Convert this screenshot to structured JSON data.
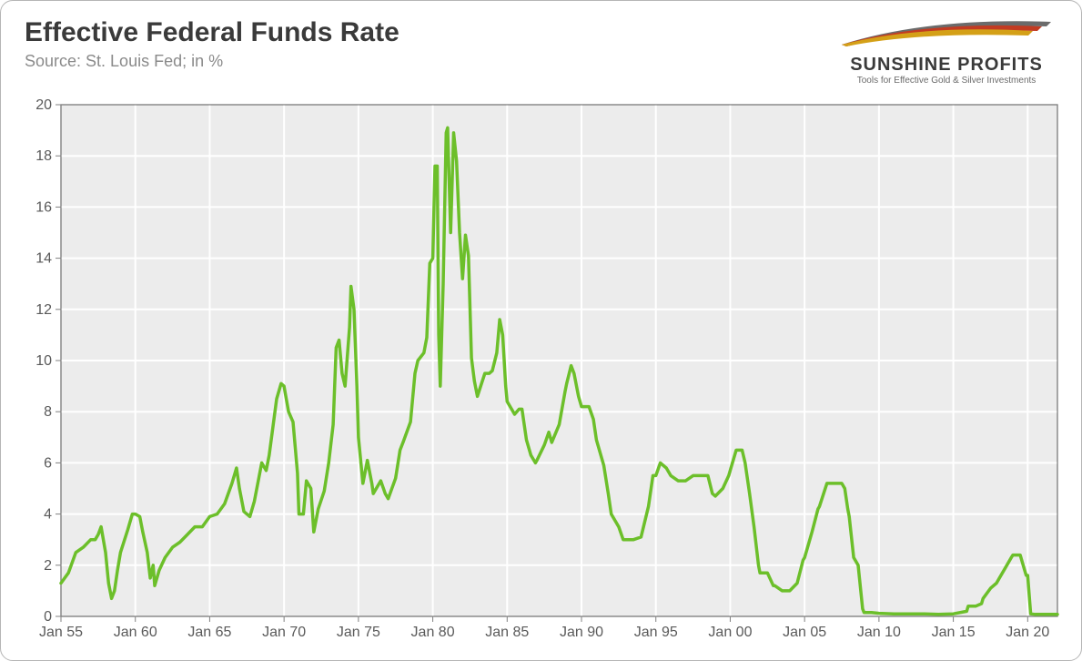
{
  "header": {
    "title": "Effective Federal Funds Rate",
    "subtitle": "Source: St. Louis Fed; in %"
  },
  "logo": {
    "title": "SUNSHINE PROFITS",
    "tagline": "Tools for Effective Gold & Silver Investments",
    "swoosh_colors": [
      "#d4a017",
      "#c23b22",
      "#6b6b6b"
    ]
  },
  "chart": {
    "type": "line",
    "background_color": "#ececec",
    "border_color": "#808080",
    "grid_color": "#ffffff",
    "line_color": "#6cbf2a",
    "line_width": 3.5,
    "ylim": [
      0,
      20
    ],
    "ytick_step": 2,
    "yticks": [
      0,
      2,
      4,
      6,
      8,
      10,
      12,
      14,
      16,
      18,
      20
    ],
    "xlim": [
      1955,
      2022
    ],
    "xtick_step": 5,
    "xticks": [
      {
        "v": 1955,
        "label": "Jan 55"
      },
      {
        "v": 1960,
        "label": "Jan 60"
      },
      {
        "v": 1965,
        "label": "Jan 65"
      },
      {
        "v": 1970,
        "label": "Jan 70"
      },
      {
        "v": 1975,
        "label": "Jan 75"
      },
      {
        "v": 1980,
        "label": "Jan 80"
      },
      {
        "v": 1985,
        "label": "Jan 85"
      },
      {
        "v": 1990,
        "label": "Jan 90"
      },
      {
        "v": 1995,
        "label": "Jan 95"
      },
      {
        "v": 2000,
        "label": "Jan 00"
      },
      {
        "v": 2005,
        "label": "Jan 05"
      },
      {
        "v": 2010,
        "label": "Jan 10"
      },
      {
        "v": 2015,
        "label": "Jan 15"
      },
      {
        "v": 2020,
        "label": "Jan 20"
      }
    ],
    "series": {
      "name": "Effective Federal Funds Rate",
      "points": [
        [
          1955.0,
          1.3
        ],
        [
          1955.5,
          1.7
        ],
        [
          1956.0,
          2.5
        ],
        [
          1956.5,
          2.7
        ],
        [
          1957.0,
          3.0
        ],
        [
          1957.3,
          3.0
        ],
        [
          1957.5,
          3.2
        ],
        [
          1957.7,
          3.5
        ],
        [
          1958.0,
          2.5
        ],
        [
          1958.2,
          1.3
        ],
        [
          1958.4,
          0.7
        ],
        [
          1958.6,
          1.0
        ],
        [
          1958.8,
          1.8
        ],
        [
          1959.0,
          2.5
        ],
        [
          1959.5,
          3.4
        ],
        [
          1959.8,
          4.0
        ],
        [
          1960.0,
          4.0
        ],
        [
          1960.3,
          3.9
        ],
        [
          1960.5,
          3.3
        ],
        [
          1960.8,
          2.5
        ],
        [
          1961.0,
          1.5
        ],
        [
          1961.2,
          2.0
        ],
        [
          1961.3,
          1.2
        ],
        [
          1961.6,
          1.8
        ],
        [
          1962.0,
          2.3
        ],
        [
          1962.5,
          2.7
        ],
        [
          1963.0,
          2.9
        ],
        [
          1963.5,
          3.2
        ],
        [
          1964.0,
          3.5
        ],
        [
          1964.5,
          3.5
        ],
        [
          1965.0,
          3.9
        ],
        [
          1965.5,
          4.0
        ],
        [
          1966.0,
          4.4
        ],
        [
          1966.5,
          5.2
        ],
        [
          1966.8,
          5.8
        ],
        [
          1967.0,
          5.0
        ],
        [
          1967.3,
          4.1
        ],
        [
          1967.7,
          3.9
        ],
        [
          1968.0,
          4.5
        ],
        [
          1968.5,
          6.0
        ],
        [
          1968.8,
          5.7
        ],
        [
          1969.0,
          6.3
        ],
        [
          1969.5,
          8.5
        ],
        [
          1969.8,
          9.1
        ],
        [
          1970.0,
          9.0
        ],
        [
          1970.3,
          8.0
        ],
        [
          1970.6,
          7.6
        ],
        [
          1970.9,
          5.6
        ],
        [
          1971.0,
          4.0
        ],
        [
          1971.3,
          4.0
        ],
        [
          1971.5,
          5.3
        ],
        [
          1971.8,
          5.0
        ],
        [
          1972.0,
          3.3
        ],
        [
          1972.3,
          4.2
        ],
        [
          1972.7,
          4.9
        ],
        [
          1973.0,
          6.0
        ],
        [
          1973.3,
          7.5
        ],
        [
          1973.5,
          10.5
        ],
        [
          1973.7,
          10.8
        ],
        [
          1973.9,
          9.5
        ],
        [
          1974.1,
          9.0
        ],
        [
          1974.4,
          11.3
        ],
        [
          1974.5,
          12.9
        ],
        [
          1974.7,
          12.0
        ],
        [
          1974.9,
          9.0
        ],
        [
          1975.0,
          7.0
        ],
        [
          1975.3,
          5.2
        ],
        [
          1975.6,
          6.1
        ],
        [
          1975.9,
          5.2
        ],
        [
          1976.0,
          4.8
        ],
        [
          1976.5,
          5.3
        ],
        [
          1976.8,
          4.8
        ],
        [
          1977.0,
          4.6
        ],
        [
          1977.5,
          5.4
        ],
        [
          1977.8,
          6.5
        ],
        [
          1978.0,
          6.8
        ],
        [
          1978.5,
          7.6
        ],
        [
          1978.8,
          9.5
        ],
        [
          1979.0,
          10.0
        ],
        [
          1979.4,
          10.3
        ],
        [
          1979.6,
          10.9
        ],
        [
          1979.8,
          13.8
        ],
        [
          1980.0,
          14.0
        ],
        [
          1980.15,
          17.6
        ],
        [
          1980.3,
          17.6
        ],
        [
          1980.4,
          11.0
        ],
        [
          1980.5,
          9.0
        ],
        [
          1980.7,
          13.0
        ],
        [
          1980.9,
          18.9
        ],
        [
          1981.0,
          19.1
        ],
        [
          1981.2,
          15.0
        ],
        [
          1981.4,
          18.9
        ],
        [
          1981.6,
          17.8
        ],
        [
          1981.8,
          15.0
        ],
        [
          1982.0,
          13.2
        ],
        [
          1982.2,
          14.9
        ],
        [
          1982.4,
          14.1
        ],
        [
          1982.6,
          10.1
        ],
        [
          1982.8,
          9.2
        ],
        [
          1983.0,
          8.6
        ],
        [
          1983.5,
          9.5
        ],
        [
          1983.8,
          9.5
        ],
        [
          1984.0,
          9.6
        ],
        [
          1984.3,
          10.3
        ],
        [
          1984.5,
          11.6
        ],
        [
          1984.7,
          11.0
        ],
        [
          1984.9,
          9.0
        ],
        [
          1985.0,
          8.4
        ],
        [
          1985.5,
          7.9
        ],
        [
          1985.8,
          8.1
        ],
        [
          1986.0,
          8.1
        ],
        [
          1986.3,
          6.9
        ],
        [
          1986.6,
          6.3
        ],
        [
          1986.9,
          6.0
        ],
        [
          1987.0,
          6.1
        ],
        [
          1987.5,
          6.7
        ],
        [
          1987.8,
          7.2
        ],
        [
          1988.0,
          6.8
        ],
        [
          1988.5,
          7.5
        ],
        [
          1988.9,
          8.8
        ],
        [
          1989.0,
          9.1
        ],
        [
          1989.3,
          9.8
        ],
        [
          1989.5,
          9.5
        ],
        [
          1989.8,
          8.6
        ],
        [
          1990.0,
          8.2
        ],
        [
          1990.5,
          8.2
        ],
        [
          1990.8,
          7.7
        ],
        [
          1991.0,
          6.9
        ],
        [
          1991.5,
          5.9
        ],
        [
          1991.8,
          4.8
        ],
        [
          1992.0,
          4.0
        ],
        [
          1992.5,
          3.5
        ],
        [
          1992.8,
          3.0
        ],
        [
          1993.0,
          3.0
        ],
        [
          1993.5,
          3.0
        ],
        [
          1994.0,
          3.1
        ],
        [
          1994.5,
          4.3
        ],
        [
          1994.8,
          5.5
        ],
        [
          1995.0,
          5.5
        ],
        [
          1995.3,
          6.0
        ],
        [
          1995.7,
          5.8
        ],
        [
          1996.0,
          5.5
        ],
        [
          1996.5,
          5.3
        ],
        [
          1997.0,
          5.3
        ],
        [
          1997.5,
          5.5
        ],
        [
          1998.0,
          5.5
        ],
        [
          1998.5,
          5.5
        ],
        [
          1998.8,
          4.8
        ],
        [
          1999.0,
          4.7
        ],
        [
          1999.5,
          5.0
        ],
        [
          1999.9,
          5.5
        ],
        [
          2000.0,
          5.7
        ],
        [
          2000.4,
          6.5
        ],
        [
          2000.8,
          6.5
        ],
        [
          2001.0,
          6.0
        ],
        [
          2001.3,
          4.8
        ],
        [
          2001.6,
          3.5
        ],
        [
          2001.9,
          2.0
        ],
        [
          2002.0,
          1.7
        ],
        [
          2002.5,
          1.7
        ],
        [
          2002.9,
          1.2
        ],
        [
          2003.0,
          1.2
        ],
        [
          2003.5,
          1.0
        ],
        [
          2003.9,
          1.0
        ],
        [
          2004.0,
          1.0
        ],
        [
          2004.5,
          1.3
        ],
        [
          2004.9,
          2.2
        ],
        [
          2005.0,
          2.3
        ],
        [
          2005.5,
          3.3
        ],
        [
          2005.9,
          4.2
        ],
        [
          2006.0,
          4.3
        ],
        [
          2006.5,
          5.2
        ],
        [
          2006.9,
          5.2
        ],
        [
          2007.0,
          5.2
        ],
        [
          2007.5,
          5.2
        ],
        [
          2007.7,
          5.0
        ],
        [
          2007.9,
          4.2
        ],
        [
          2008.0,
          3.9
        ],
        [
          2008.3,
          2.3
        ],
        [
          2008.6,
          2.0
        ],
        [
          2008.9,
          0.3
        ],
        [
          2009.0,
          0.15
        ],
        [
          2009.5,
          0.15
        ],
        [
          2010.0,
          0.12
        ],
        [
          2011.0,
          0.1
        ],
        [
          2012.0,
          0.1
        ],
        [
          2013.0,
          0.1
        ],
        [
          2014.0,
          0.08
        ],
        [
          2015.0,
          0.1
        ],
        [
          2015.9,
          0.2
        ],
        [
          2016.0,
          0.4
        ],
        [
          2016.5,
          0.4
        ],
        [
          2016.9,
          0.5
        ],
        [
          2017.0,
          0.7
        ],
        [
          2017.5,
          1.1
        ],
        [
          2017.9,
          1.3
        ],
        [
          2018.0,
          1.4
        ],
        [
          2018.5,
          1.9
        ],
        [
          2018.9,
          2.3
        ],
        [
          2019.0,
          2.4
        ],
        [
          2019.5,
          2.4
        ],
        [
          2019.8,
          1.8
        ],
        [
          2019.9,
          1.6
        ],
        [
          2020.0,
          1.6
        ],
        [
          2020.2,
          0.1
        ],
        [
          2020.5,
          0.08
        ],
        [
          2021.0,
          0.08
        ],
        [
          2021.5,
          0.08
        ],
        [
          2022.0,
          0.08
        ]
      ]
    }
  }
}
